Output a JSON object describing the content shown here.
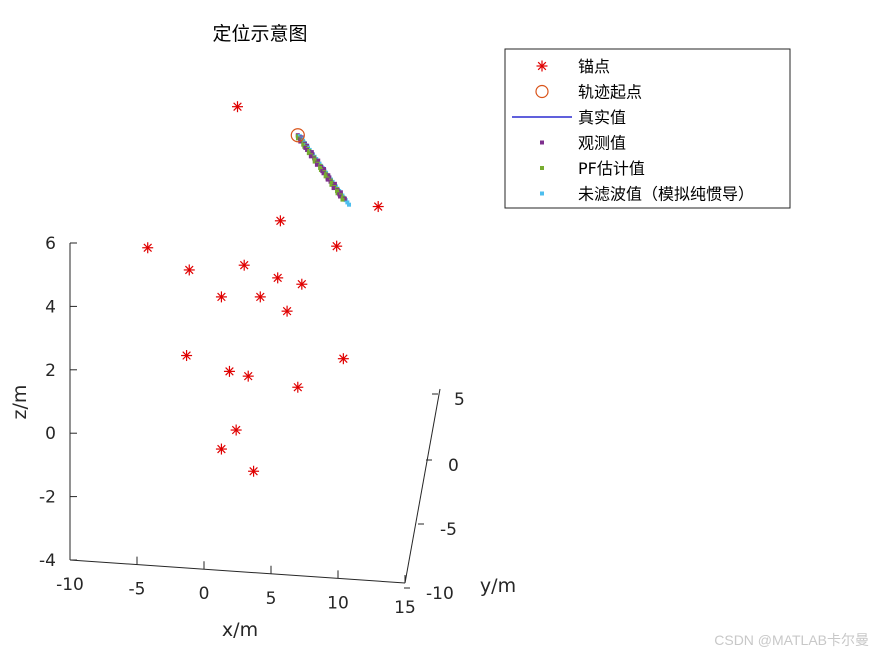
{
  "chart_data": {
    "type": "scatter",
    "title": "定位示意图",
    "xlabel": "x/m",
    "ylabel": "y/m",
    "zlabel": "z/m",
    "xticks": [
      "-10",
      "-5",
      "0",
      "5",
      "10",
      "15"
    ],
    "yticks": [
      "-10",
      "-5",
      "0",
      "5"
    ],
    "zticks": [
      "-4",
      "-2",
      "0",
      "2",
      "4",
      "6"
    ],
    "legend": {
      "position": "top-right",
      "entries": [
        {
          "label": "锚点",
          "marker": "asterisk",
          "color": "#e00000"
        },
        {
          "label": "轨迹起点",
          "marker": "circle",
          "color": "#d95319"
        },
        {
          "label": "真实值",
          "marker": "line",
          "color": "#0000c8"
        },
        {
          "label": "观测值",
          "marker": "square",
          "color": "#7e2f8e"
        },
        {
          "label": "PF估计值",
          "marker": "square",
          "color": "#77ac30"
        },
        {
          "label": "未滤波值（模拟纯惯导）",
          "marker": "square",
          "color": "#4dbeee"
        }
      ]
    },
    "anchors_screen_proj": [
      [
        -4.2,
        5.85
      ],
      [
        -1.1,
        5.15
      ],
      [
        1.3,
        4.3
      ],
      [
        3.0,
        5.3
      ],
      [
        4.2,
        4.3
      ],
      [
        5.5,
        4.9
      ],
      [
        7.3,
        4.7
      ],
      [
        6.2,
        3.85
      ],
      [
        9.9,
        5.9
      ],
      [
        5.7,
        6.7
      ],
      [
        2.5,
        10.3
      ],
      [
        13.0,
        7.15
      ],
      [
        -1.3,
        2.45
      ],
      [
        1.9,
        1.95
      ],
      [
        3.3,
        1.8
      ],
      [
        7.0,
        1.45
      ],
      [
        10.4,
        2.35
      ],
      [
        2.4,
        0.1
      ],
      [
        1.3,
        -0.5
      ],
      [
        3.7,
        -1.2
      ]
    ],
    "trajectory_start_proj": [
      7.0,
      9.4
    ],
    "trajectory_end_proj": [
      10.4,
      7.4
    ]
  },
  "watermark": "CSDN @MATLAB卡尔曼"
}
